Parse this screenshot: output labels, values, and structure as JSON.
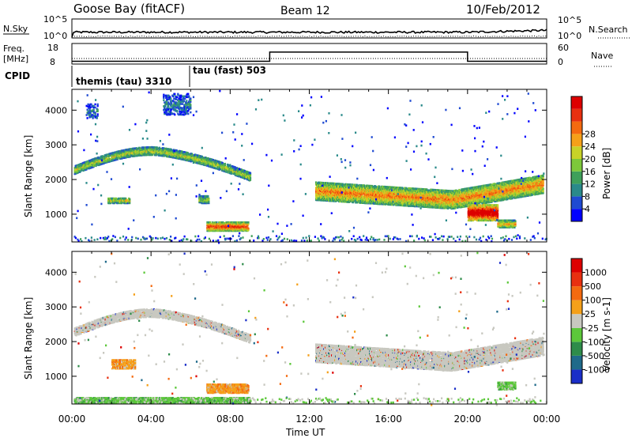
{
  "header": {
    "station": "Goose Bay (fitACF)",
    "beam": "Beam 12",
    "date": "10/Feb/2012"
  },
  "nsky_panel": {
    "left_label": "N.Sky",
    "right_label": "N.Search",
    "left_ticks": [
      "10^5",
      "10^0"
    ],
    "right_ticks": [
      "10^5",
      "10^0"
    ]
  },
  "freq_panel": {
    "left_label_line1": "Freq.",
    "left_label_line2": "[MHz]",
    "right_label": "Nave",
    "left_ticks": [
      "18",
      "8"
    ],
    "right_ticks": [
      "60",
      "0"
    ],
    "nave_steps": [
      {
        "start_h": 0,
        "end_h": 10,
        "value": 8
      },
      {
        "start_h": 10,
        "end_h": 20,
        "value": 35
      },
      {
        "start_h": 20,
        "end_h": 24,
        "value": 8
      }
    ]
  },
  "cpid_panel": {
    "label": "CPID",
    "modes": [
      {
        "label": "themis (tau) 3310",
        "start_h": 0
      },
      {
        "label": "tau (fast) 503",
        "start_h": 5.95
      }
    ]
  },
  "x_axis": {
    "label": "Time UT",
    "range_h": [
      0,
      24
    ],
    "ticks": [
      "00:00",
      "04:00",
      "08:00",
      "12:00",
      "16:00",
      "20:00",
      "00:00"
    ]
  },
  "chart_data": [
    {
      "type": "heatmap",
      "name": "power",
      "ylabel": "Slant Range [km]",
      "yticks": [
        "1000",
        "2000",
        "3000",
        "4000"
      ],
      "ylim": [
        200,
        4600
      ],
      "colorbar": {
        "label": "Power [dB]",
        "labels": [
          "4",
          "8",
          "12",
          "16",
          "20",
          "24",
          "28"
        ],
        "colors": [
          "#0000ff",
          "#1f4ad2",
          "#2a8a8a",
          "#3fa05a",
          "#7dc83a",
          "#c8d228",
          "#f5a019",
          "#f46a10",
          "#e83010",
          "#dd0000"
        ]
      },
      "regions": [
        {
          "desc": "arc-early",
          "t": [
            0.1,
            9.0
          ],
          "r_start": 2300,
          "r_peak": 2850,
          "r_end": 2100,
          "peak_t": 4.0,
          "width": 220,
          "level": 0.45
        },
        {
          "desc": "near-range-07",
          "t": [
            6.8,
            8.9
          ],
          "r": [
            550,
            800
          ],
          "level": 0.75
        },
        {
          "desc": "patch-03",
          "t": [
            1.8,
            2.9
          ],
          "r": [
            1350,
            1500
          ],
          "level": 0.5
        },
        {
          "desc": "patch-07",
          "t": [
            6.4,
            6.9
          ],
          "r": [
            1350,
            1550
          ],
          "level": 0.4
        },
        {
          "desc": "band-late",
          "t": [
            12.3,
            23.8
          ],
          "r_start": 1700,
          "r_mid": 1450,
          "r_end": 1900,
          "width": 520,
          "level": 0.62
        },
        {
          "desc": "strong-20-21",
          "t": [
            20.0,
            21.5
          ],
          "r": [
            850,
            1300
          ],
          "level": 0.95
        },
        {
          "desc": "patch-22",
          "t": [
            21.5,
            22.4
          ],
          "r": [
            650,
            850
          ],
          "level": 0.6
        },
        {
          "desc": "top-scatter-01",
          "t": [
            0.7,
            1.3
          ],
          "r": [
            3800,
            4200
          ],
          "level": 0.2
        },
        {
          "desc": "top-scatter-05",
          "t": [
            4.6,
            6.0
          ],
          "r": [
            3900,
            4500
          ],
          "level": 0.2
        }
      ]
    },
    {
      "type": "heatmap",
      "name": "velocity",
      "ylabel": "Slant Range [km]",
      "yticks": [
        "1000",
        "2000",
        "3000",
        "4000"
      ],
      "ylim": [
        200,
        4600
      ],
      "colorbar": {
        "label": "Velocity [m s-1]",
        "labels": [
          "1000",
          "500",
          "100",
          "25",
          "-25",
          "-100",
          "-500",
          "-1000"
        ],
        "colors": [
          "#1a2ec8",
          "#1f6a8a",
          "#2e8c4a",
          "#5cc83a",
          "#c8c8c0",
          "#f5a019",
          "#f46a10",
          "#e83010",
          "#dd0000"
        ]
      },
      "regions": [
        {
          "desc": "arc-early",
          "t": [
            0.1,
            9.0
          ],
          "r_start": 2300,
          "r_peak": 2850,
          "r_end": 2100,
          "peak_t": 4.0,
          "width": 220,
          "kind": "gray"
        },
        {
          "desc": "near-range-07",
          "t": [
            6.8,
            8.9
          ],
          "r": [
            550,
            800
          ],
          "kind": "orange"
        },
        {
          "desc": "patch-03",
          "t": [
            2.0,
            3.2
          ],
          "r": [
            1250,
            1500
          ],
          "kind": "orange"
        },
        {
          "desc": "band-late",
          "t": [
            12.3,
            23.8
          ],
          "r_start": 1700,
          "r_mid": 1450,
          "r_end": 1900,
          "width": 520,
          "kind": "gray"
        },
        {
          "desc": "patch-22",
          "t": [
            21.5,
            22.4
          ],
          "r": [
            650,
            850
          ],
          "kind": "green"
        },
        {
          "desc": "near-range-green",
          "t": [
            0.1,
            9.0
          ],
          "r": [
            250,
            420
          ],
          "kind": "green"
        }
      ]
    }
  ]
}
